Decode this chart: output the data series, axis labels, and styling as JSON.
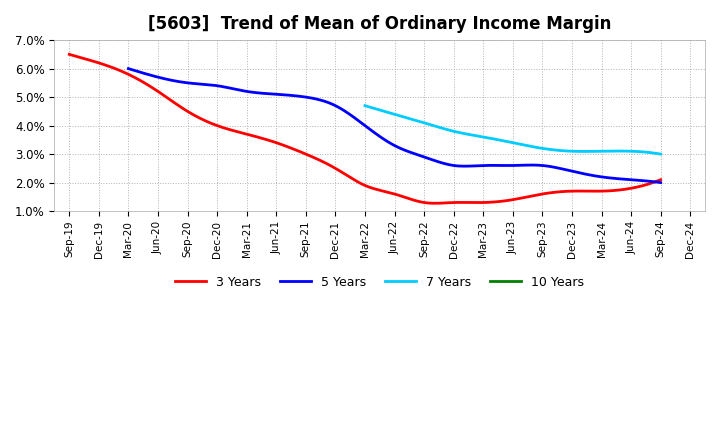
{
  "title": "[5603]  Trend of Mean of Ordinary Income Margin",
  "ylim": [
    0.01,
    0.07
  ],
  "yticks": [
    0.01,
    0.02,
    0.03,
    0.04,
    0.05,
    0.06,
    0.07
  ],
  "ytick_labels": [
    "1.0%",
    "2.0%",
    "3.0%",
    "4.0%",
    "5.0%",
    "6.0%",
    "7.0%"
  ],
  "xtick_labels": [
    "Sep-19",
    "Dec-19",
    "Mar-20",
    "Jun-20",
    "Sep-20",
    "Dec-20",
    "Mar-21",
    "Jun-21",
    "Sep-21",
    "Dec-21",
    "Mar-22",
    "Jun-22",
    "Sep-22",
    "Dec-22",
    "Mar-23",
    "Jun-23",
    "Sep-23",
    "Dec-23",
    "Mar-24",
    "Jun-24",
    "Sep-24",
    "Dec-24"
  ],
  "line_3yr": {
    "color": "#ff0000",
    "label": "3 Years",
    "values": [
      0.065,
      0.062,
      0.058,
      0.052,
      0.045,
      0.04,
      0.037,
      0.034,
      0.03,
      0.025,
      0.019,
      0.016,
      0.013,
      0.013,
      0.013,
      0.014,
      0.016,
      0.017,
      0.017,
      0.018,
      0.021,
      null
    ]
  },
  "line_5yr": {
    "color": "#0000ff",
    "label": "5 Years",
    "values": [
      null,
      null,
      0.06,
      0.057,
      0.055,
      0.054,
      0.052,
      0.051,
      0.05,
      0.047,
      0.04,
      0.033,
      0.029,
      0.026,
      0.026,
      0.026,
      0.026,
      0.024,
      0.022,
      0.021,
      0.02,
      null
    ]
  },
  "line_7yr": {
    "color": "#00ccff",
    "label": "7 Years",
    "values": [
      null,
      null,
      null,
      null,
      null,
      null,
      null,
      null,
      null,
      null,
      0.047,
      0.044,
      0.041,
      0.038,
      0.036,
      0.034,
      0.032,
      0.031,
      0.031,
      0.031,
      0.03,
      null
    ]
  },
  "line_10yr": {
    "color": "#008000",
    "label": "10 Years",
    "values": [
      null,
      null,
      null,
      null,
      null,
      null,
      null,
      null,
      null,
      null,
      null,
      null,
      null,
      null,
      null,
      null,
      null,
      null,
      null,
      null,
      null,
      null
    ]
  },
  "background_color": "#ffffff",
  "plot_bg_color": "#ffffff",
  "grid_color": "#aaaaaa",
  "title_fontsize": 12,
  "title_fontweight": "bold"
}
